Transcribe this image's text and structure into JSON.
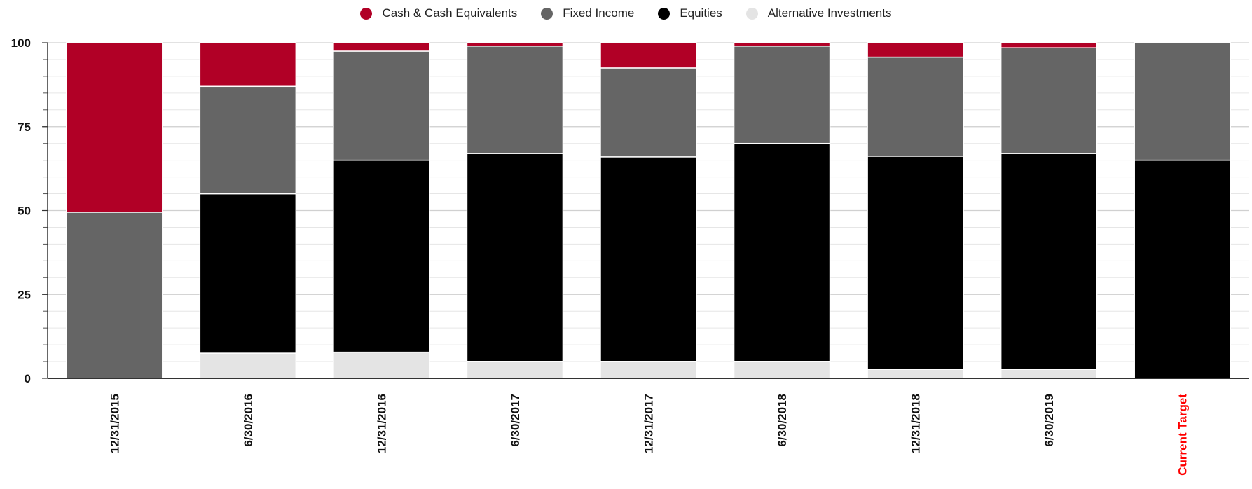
{
  "chart_data": {
    "type": "bar",
    "stacked": true,
    "categories": [
      "12/31/2015",
      "6/30/2016",
      "12/31/2016",
      "6/30/2017",
      "12/31/2017",
      "6/30/2018",
      "12/31/2018",
      "6/30/2019",
      "Current Target"
    ],
    "highlight_category": "Current Target",
    "highlight_color": "#ff0000",
    "ylim": [
      0,
      100
    ],
    "yticks": [
      0,
      25,
      50,
      75,
      100
    ],
    "minor_tick_step": 5,
    "grid": true,
    "legend_position": "top-center",
    "series": [
      {
        "name": "Alternative Investments",
        "color": "#e4e4e4",
        "values": [
          0,
          7.5,
          7.8,
          5,
          5,
          5,
          2.7,
          2.7,
          0
        ]
      },
      {
        "name": "Equities",
        "color": "#000000",
        "values": [
          0,
          47.5,
          57.2,
          62,
          61,
          65,
          63.5,
          64.3,
          65
        ]
      },
      {
        "name": "Fixed Income",
        "color": "#656565",
        "values": [
          49.5,
          32,
          32.5,
          32,
          26.5,
          29,
          29.5,
          31.5,
          35
        ]
      },
      {
        "name": "Cash & Cash Equivalents",
        "color": "#b10026",
        "values": [
          50.5,
          13,
          2.5,
          1,
          7.5,
          1,
          4.3,
          1.5,
          0
        ]
      }
    ],
    "legend_order": [
      "Cash & Cash Equivalents",
      "Fixed Income",
      "Equities",
      "Alternative Investments"
    ]
  }
}
